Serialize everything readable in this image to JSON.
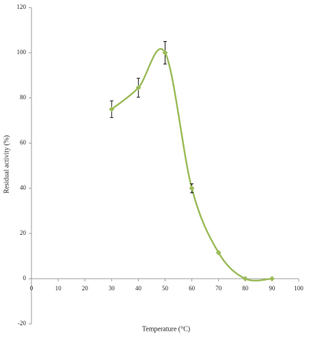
{
  "chart_data": {
    "type": "scatter",
    "x_label": "Temperature (°C)",
    "y_label": "Residual activity (%)",
    "x": [
      30,
      40,
      50,
      60,
      70,
      80,
      90
    ],
    "series": [
      {
        "name": "Residual activity",
        "color": "#9bbb59",
        "values": [
          75,
          84.5,
          100,
          40,
          11.5,
          0,
          0
        ],
        "errors": [
          3.7,
          4.2,
          5,
          2,
          0,
          0,
          0
        ]
      }
    ],
    "xlim": [
      0,
      100
    ],
    "xticks": [
      0,
      10,
      20,
      30,
      40,
      50,
      60,
      70,
      80,
      90,
      100
    ],
    "ylim": [
      -20,
      120
    ],
    "yticks": [
      -20,
      0,
      20,
      40,
      60,
      80,
      100,
      120
    ],
    "smooth": true,
    "grid": false
  }
}
